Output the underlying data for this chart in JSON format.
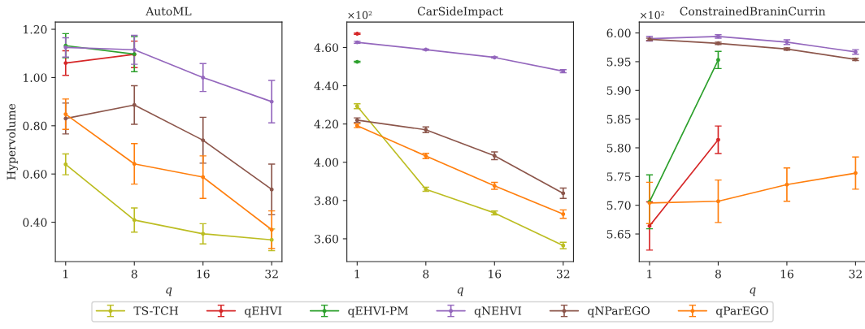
{
  "chart_data": [
    {
      "type": "line",
      "title": "AutoML",
      "xlabel": "q",
      "ylabel": "Hypervolume",
      "categories": [
        "1",
        "8",
        "16",
        "32"
      ],
      "ylim": [
        0.237,
        1.23
      ],
      "yticks": [
        {
          "value": 0.4,
          "label": "0.40"
        },
        {
          "value": 0.6,
          "label": "0.60"
        },
        {
          "value": 0.8,
          "label": "0.80"
        },
        {
          "value": 1.0,
          "label": "1.00"
        },
        {
          "value": 1.2,
          "label": "1.20"
        }
      ],
      "marker": "circle",
      "grid": false,
      "legend": "bottom",
      "series": [
        {
          "name": "TS-TCH",
          "color": "#bcbd22",
          "values": [
            0.64,
            0.409,
            0.352,
            0.327
          ],
          "errors": [
            0.043,
            0.05,
            0.042,
            0.045
          ]
        },
        {
          "name": "qEHVI",
          "color": "#d62728",
          "values": [
            1.06,
            1.096,
            null,
            null
          ],
          "errors": [
            0.051,
            0.055,
            null,
            null
          ]
        },
        {
          "name": "qEHVI-PM",
          "color": "#2ca02c",
          "values": [
            1.132,
            1.097,
            null,
            null
          ],
          "errors": [
            0.05,
            0.073,
            null,
            null
          ]
        },
        {
          "name": "qNEHVI",
          "color": "#9467bd",
          "values": [
            1.125,
            1.115,
            1.0,
            0.9
          ],
          "errors": [
            0.04,
            0.06,
            0.058,
            0.088
          ]
        },
        {
          "name": "qNParEGO",
          "color": "#8c564b",
          "values": [
            0.83,
            0.886,
            0.74,
            0.536
          ],
          "errors": [
            0.064,
            0.08,
            0.095,
            0.105
          ]
        },
        {
          "name": "qParEGO",
          "color": "#ff7f0e",
          "values": [
            0.848,
            0.642,
            0.587,
            0.369
          ],
          "errors": [
            0.063,
            0.084,
            0.088,
            0.078
          ]
        }
      ]
    },
    {
      "type": "line",
      "title": "CarSideImpact",
      "xlabel": "q",
      "annotations": [
        "×10²"
      ],
      "categories": [
        "1",
        "8",
        "16",
        "32"
      ],
      "ylim": [
        3.481,
        4.733
      ],
      "yticks": [
        {
          "value": 3.6,
          "label": "3.60"
        },
        {
          "value": 3.8,
          "label": "3.80"
        },
        {
          "value": 4.0,
          "label": "4.00"
        },
        {
          "value": 4.2,
          "label": "4.20"
        },
        {
          "value": 4.4,
          "label": "4.40"
        },
        {
          "value": 4.6,
          "label": "4.60"
        }
      ],
      "marker": "circle",
      "grid": false,
      "series": [
        {
          "color": "#bcbd22",
          "values": [
            4.293,
            3.859,
            3.735,
            3.565
          ],
          "errors": [
            0.013,
            0.011,
            0.01,
            0.017
          ]
        },
        {
          "color": "#d62728",
          "values": [
            4.672,
            null,
            null,
            null
          ],
          "errors": [
            0.003,
            null,
            null,
            null
          ]
        },
        {
          "color": "#2ca02c",
          "values": [
            4.525,
            null,
            null,
            null
          ],
          "errors": [
            0.003,
            null,
            null,
            null
          ]
        },
        {
          "color": "#9467bd",
          "values": [
            4.627,
            4.589,
            4.548,
            4.476
          ],
          "errors": [
            0.005,
            0.003,
            0.003,
            0.008
          ]
        },
        {
          "color": "#8c564b",
          "values": [
            4.22,
            4.17,
            4.034,
            3.838
          ],
          "errors": [
            0.012,
            0.015,
            0.02,
            0.027
          ]
        },
        {
          "color": "#ff7f0e",
          "values": [
            4.191,
            4.033,
            3.877,
            3.729
          ],
          "errors": [
            0.01,
            0.014,
            0.018,
            0.022
          ]
        }
      ]
    },
    {
      "type": "line",
      "title": "ConstrainedBraninCurrin",
      "xlabel": "q",
      "annotations": [
        "×10²"
      ],
      "categories": [
        "1",
        "8",
        "16",
        "32"
      ],
      "ylim": [
        5.602,
        6.019
      ],
      "yticks": [
        {
          "value": 5.65,
          "label": "5.65"
        },
        {
          "value": 5.7,
          "label": "5.70"
        },
        {
          "value": 5.75,
          "label": "5.75"
        },
        {
          "value": 5.8,
          "label": "5.80"
        },
        {
          "value": 5.85,
          "label": "5.85"
        },
        {
          "value": 5.9,
          "label": "5.90"
        },
        {
          "value": 5.95,
          "label": "5.95"
        },
        {
          "value": 6.0,
          "label": "6.00"
        }
      ],
      "marker": "circle",
      "grid": false,
      "series": [
        {
          "color": "#d62728",
          "values": [
            5.664,
            5.814,
            null,
            null
          ],
          "errors": [
            0.042,
            0.024,
            null,
            null
          ]
        },
        {
          "color": "#2ca02c",
          "values": [
            5.706,
            5.953,
            null,
            null
          ],
          "errors": [
            0.047,
            0.015,
            null,
            null
          ]
        },
        {
          "color": "#9467bd",
          "values": [
            5.99,
            5.994,
            5.984,
            5.967
          ],
          "errors": [
            0.004,
            0.003,
            0.004,
            0.004
          ]
        },
        {
          "color": "#8c564b",
          "values": [
            5.989,
            5.982,
            5.972,
            5.954
          ],
          "errors": [
            0.002,
            0.002,
            0.002,
            0.002
          ]
        },
        {
          "color": "#ff7f0e",
          "values": [
            5.704,
            5.707,
            5.736,
            5.756
          ],
          "errors": [
            0.036,
            0.037,
            0.029,
            0.028
          ]
        }
      ]
    }
  ]
}
